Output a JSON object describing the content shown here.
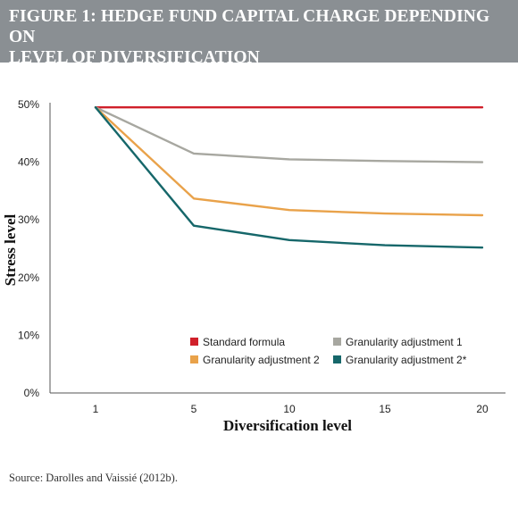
{
  "header": {
    "title_line1": "FIGURE 1: HEDGE FUND CAPITAL CHARGE DEPENDING ON",
    "title_line2": "LEVEL OF DIVERSIFICATION"
  },
  "source": "Source: Darolles and Vaissié (2012b).",
  "chart_data": {
    "type": "line",
    "x": [
      1,
      5,
      10,
      15,
      20
    ],
    "xticks": [
      "1",
      "5",
      "10",
      "15",
      "20"
    ],
    "yticks": [
      "0%",
      "10%",
      "20%",
      "30%",
      "40%",
      "50%"
    ],
    "ylim": [
      0,
      50
    ],
    "xlabel": "Diversification level",
    "ylabel": "Stress level",
    "grid": false,
    "legend_position": "lower-right",
    "series": [
      {
        "name": "Standard formula",
        "color": "#d0202a",
        "values": [
          49.5,
          49.5,
          49.5,
          49.5,
          49.5
        ]
      },
      {
        "name": "Granularity adjustment 1",
        "color": "#a7a7a0",
        "values": [
          49.5,
          41.5,
          40.5,
          40.2,
          40.0
        ]
      },
      {
        "name": "Granularity adjustment 2",
        "color": "#e9a24a",
        "values": [
          49.5,
          33.7,
          31.7,
          31.1,
          30.8
        ]
      },
      {
        "name": "Granularity adjustment 2*",
        "color": "#16676a",
        "values": [
          49.5,
          29.0,
          26.5,
          25.6,
          25.2
        ]
      }
    ]
  }
}
